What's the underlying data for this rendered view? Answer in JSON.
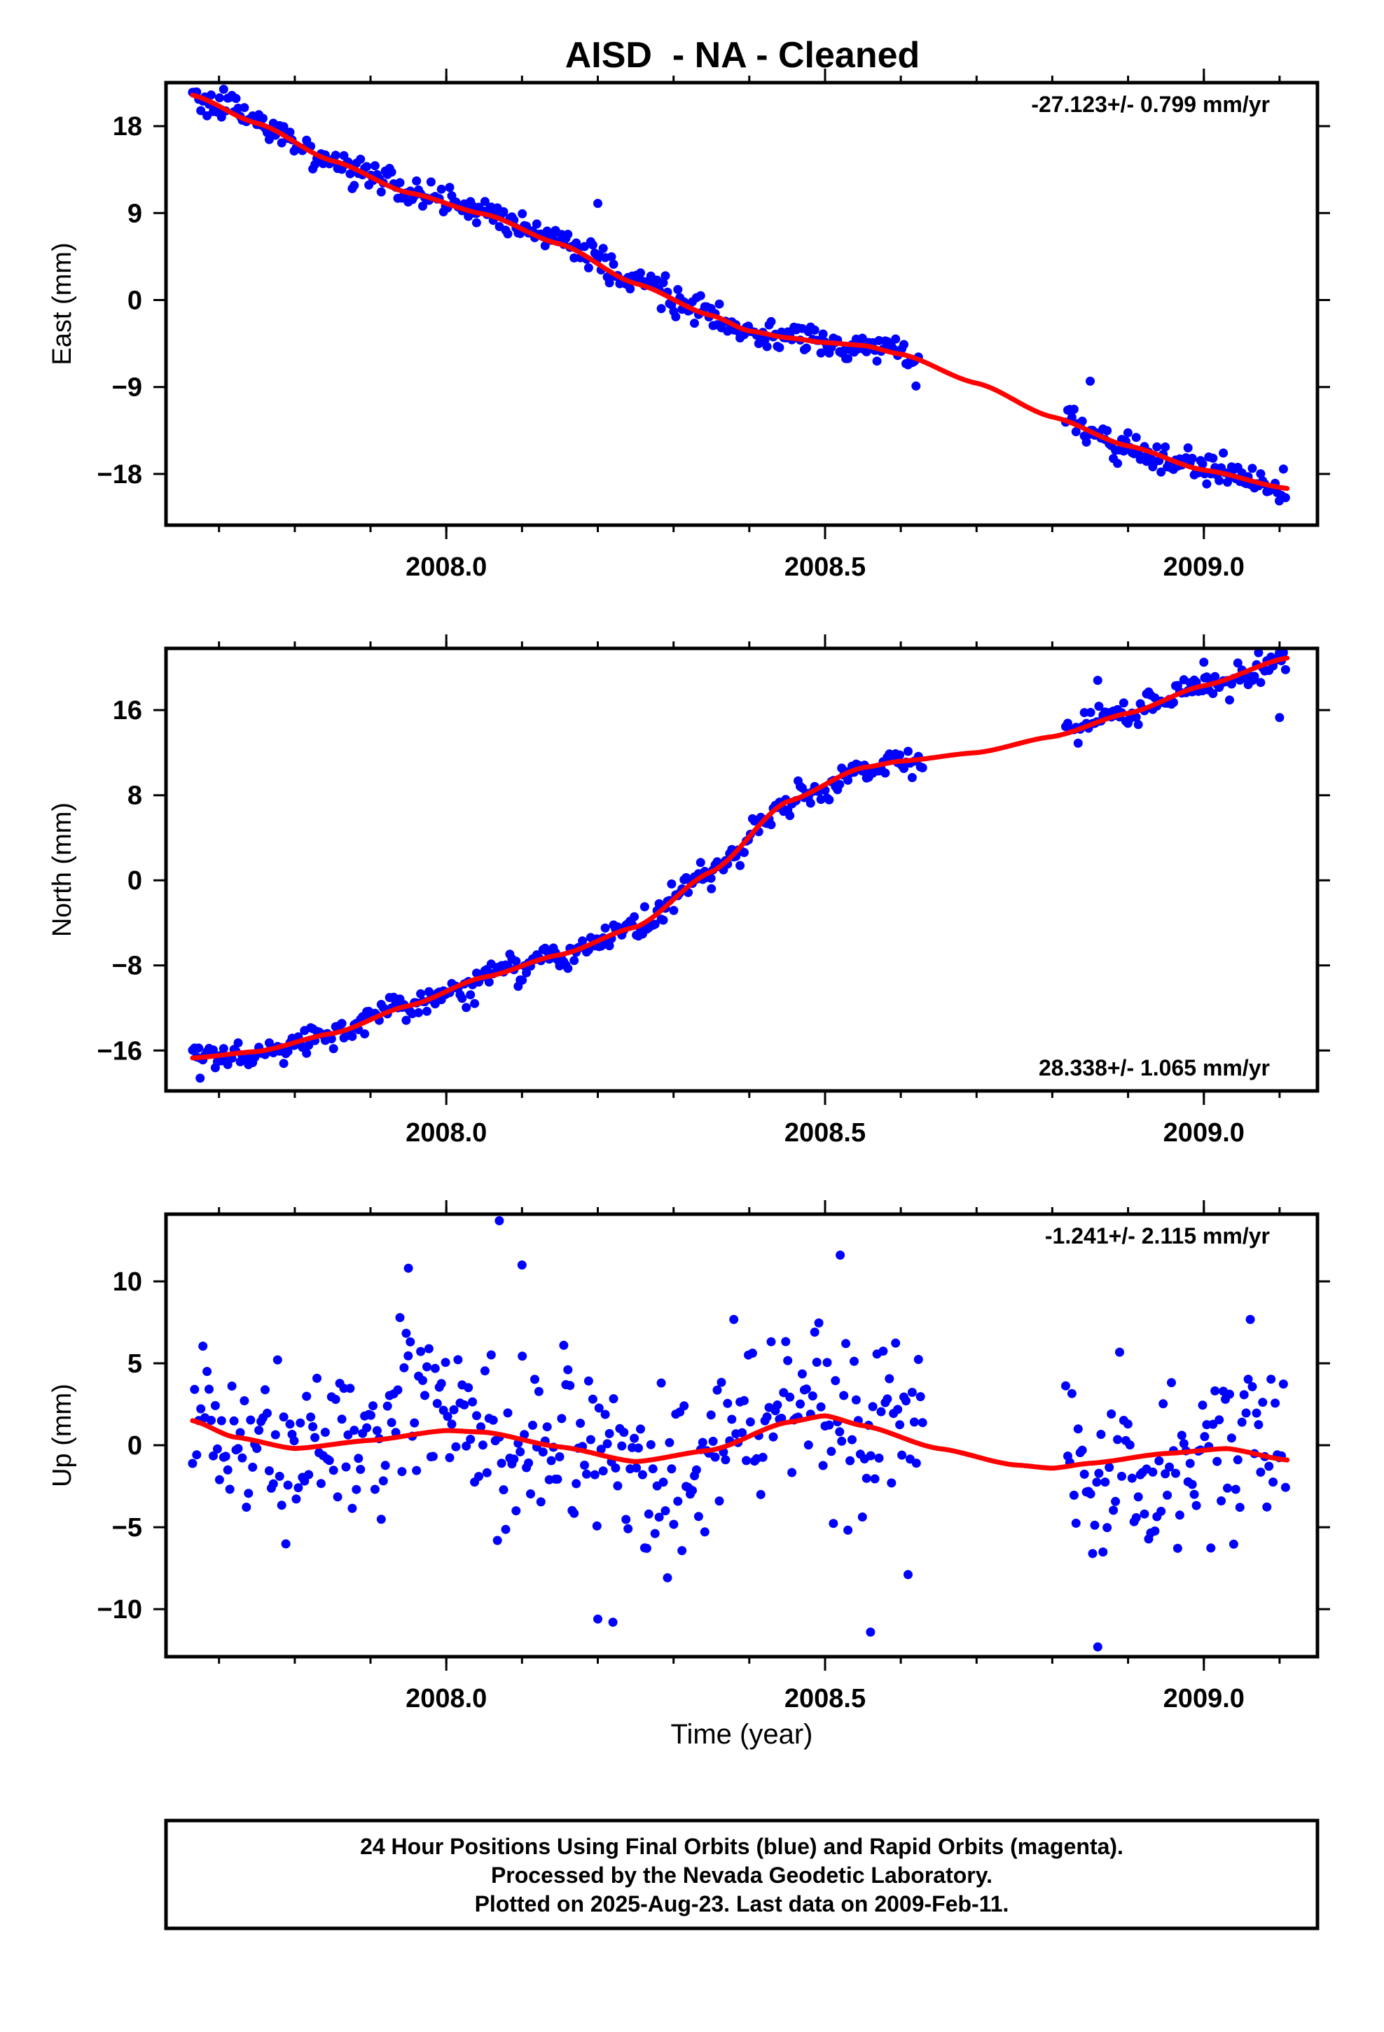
{
  "figure": {
    "title": "AISD  - NA - Cleaned",
    "xlabel": "Time (year)",
    "footer_lines": [
      "24 Hour Positions Using Final Orbits (blue) and Rapid Orbits (magenta).",
      "Processed by the Nevada Geodetic Laboratory.",
      "Plotted on 2025-Aug-23. Last data on 2009-Feb-11."
    ],
    "colors": {
      "points": "#0000ff",
      "model": "#ff0000",
      "frame": "#000000"
    }
  },
  "chart_data": [
    {
      "type": "scatter",
      "ylabel": "East (mm)",
      "rate_label": "-27.123+/- 0.799 mm/yr",
      "rate_position": "top-right",
      "xlim": [
        2007.63,
        2009.15
      ],
      "ylim": [
        -23.3,
        22.5
      ],
      "xticks": [
        2008.0,
        2008.5,
        2009.0
      ],
      "xtick_labels": [
        "2008.0",
        "2008.5",
        "2009.0"
      ],
      "yticks": [
        18,
        9,
        0,
        -9,
        -18
      ],
      "ytick_labels": [
        "18",
        "9",
        "0",
        "−9",
        "−18"
      ],
      "gaps": [
        [
          2008.625,
          2008.815
        ]
      ],
      "model": {
        "x": [
          2007.665,
          2007.75,
          2007.85,
          2007.95,
          2008.05,
          2008.15,
          2008.25,
          2008.35,
          2008.4,
          2008.45,
          2008.5,
          2008.55,
          2008.6,
          2008.7,
          2008.8,
          2008.9,
          2009.0,
          2009.11
        ],
        "y": [
          21.2,
          18.3,
          14.4,
          11.1,
          8.9,
          5.8,
          1.7,
          -1.6,
          -3.2,
          -3.9,
          -4.4,
          -4.7,
          -5.6,
          -8.6,
          -12.1,
          -15.1,
          -17.6,
          -19.5
        ]
      },
      "noise": 0.9,
      "outliers": [
        [
          2008.04,
          8.0
        ],
        [
          2008.2,
          10.0
        ],
        [
          2008.62,
          -8.9
        ],
        [
          2008.85,
          -8.4
        ]
      ]
    },
    {
      "type": "scatter",
      "ylabel": "North (mm)",
      "rate_label": "28.338+/- 1.065 mm/yr",
      "rate_position": "bottom-right",
      "xlim": [
        2007.63,
        2009.15
      ],
      "ylim": [
        -19.8,
        21.8
      ],
      "xticks": [
        2008.0,
        2008.5,
        2009.0
      ],
      "xtick_labels": [
        "2008.0",
        "2008.5",
        "2009.0"
      ],
      "yticks": [
        16,
        8,
        0,
        -8,
        -16
      ],
      "ytick_labels": [
        "16",
        "8",
        "0",
        "−8",
        "−16"
      ],
      "gaps": [
        [
          2008.63,
          2008.815
        ]
      ],
      "model": {
        "x": [
          2007.665,
          2007.75,
          2007.85,
          2007.95,
          2008.05,
          2008.15,
          2008.25,
          2008.35,
          2008.45,
          2008.55,
          2008.6,
          2008.7,
          2008.8,
          2008.9,
          2009.0,
          2009.11
        ],
        "y": [
          -16.7,
          -16.1,
          -14.4,
          -11.8,
          -9.1,
          -7.0,
          -4.4,
          0.8,
          7.4,
          10.6,
          11.2,
          12.0,
          13.5,
          15.7,
          18.3,
          20.9
        ]
      },
      "noise": 0.8,
      "outliers": [
        [
          2007.675,
          -18.6
        ],
        [
          2008.35,
          -0.8
        ],
        [
          2008.86,
          18.8
        ],
        [
          2009.0,
          20.5
        ],
        [
          2009.1,
          15.3
        ]
      ]
    },
    {
      "type": "scatter",
      "ylabel": "Up (mm)",
      "rate_label": "-1.241+/- 2.115 mm/yr",
      "rate_position": "top-right",
      "xlim": [
        2007.63,
        2009.15
      ],
      "ylim": [
        -12.9,
        14.1
      ],
      "xticks": [
        2008.0,
        2008.5,
        2009.0
      ],
      "xtick_labels": [
        "2008.0",
        "2008.5",
        "2009.0"
      ],
      "yticks": [
        10,
        5,
        0,
        -5,
        -10
      ],
      "ytick_labels": [
        "10",
        "5",
        "0",
        "−5",
        "−10"
      ],
      "gaps": [
        [
          2008.63,
          2008.815
        ]
      ],
      "model": {
        "x": [
          2007.665,
          2007.72,
          2007.8,
          2007.9,
          2008.0,
          2008.05,
          2008.15,
          2008.25,
          2008.35,
          2008.45,
          2008.5,
          2008.55,
          2008.65,
          2008.75,
          2008.8,
          2008.85,
          2008.95,
          2009.03,
          2009.11
        ],
        "y": [
          1.5,
          0.5,
          -0.2,
          0.3,
          0.9,
          0.8,
          -0.1,
          -1.0,
          -0.3,
          1.4,
          1.8,
          1.2,
          -0.2,
          -1.2,
          -1.4,
          -1.1,
          -0.5,
          -0.2,
          -0.9
        ]
      },
      "noise": 3.2,
      "outliers": [
        [
          2008.07,
          13.7
        ],
        [
          2008.52,
          11.6
        ],
        [
          2008.56,
          -11.4
        ],
        [
          2008.86,
          -12.3
        ],
        [
          2008.2,
          -10.6
        ],
        [
          2008.22,
          -10.8
        ],
        [
          2007.95,
          10.8
        ],
        [
          2008.1,
          11.0
        ]
      ]
    }
  ]
}
